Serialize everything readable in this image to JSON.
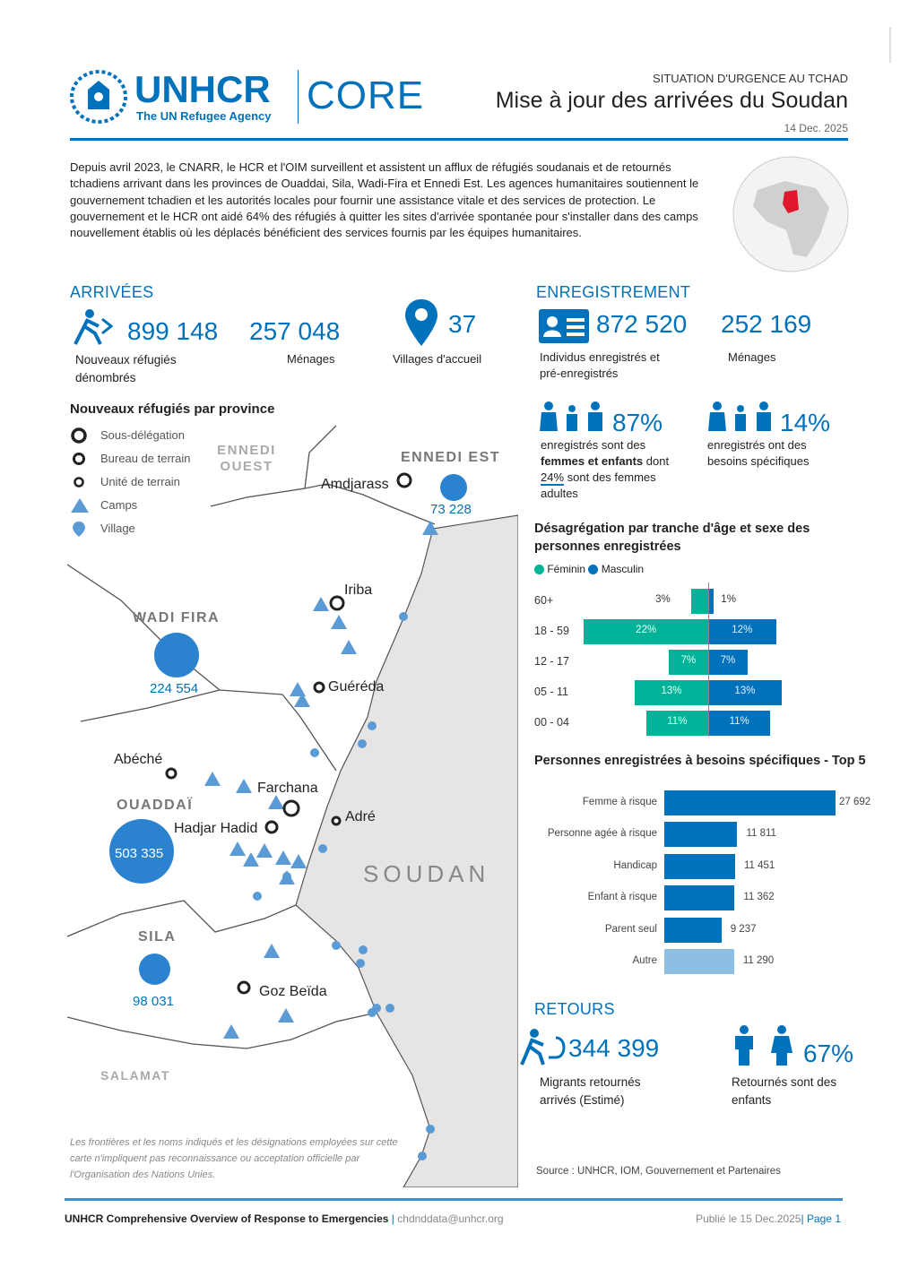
{
  "header": {
    "logo_text": "UNHCR",
    "logo_sub": "The UN Refugee Agency",
    "core": "CORE",
    "kicker": "SITUATION D'URGENCE AU TCHAD",
    "title": "Mise à jour des arrivées du Soudan",
    "date": "14 Dec. 2025"
  },
  "intro": "Depuis avril 2023, le CNARR, le HCR et l'OIM surveillent et assistent un afflux de réfugiés soudanais et de retournés tchadiens arrivant dans les provinces de Ouaddai, Sila, Wadi-Fira et Ennedi Est. Les agences humanitaires soutiennent le gouvernement tchadien et les autorités locales pour fournir une assistance vitale et des services de protection. Le gouvernement et le HCR ont aidé 64% des réfugiés à quitter les sites d'arrivée spontanée pour s'installer dans des camps nouvellement établis où les déplacés bénéficient des services fournis par les équipes humanitaires.",
  "arrivals": {
    "title": "ARRIVÉES",
    "refugees": "899 148",
    "refugees_label": "Nouveaux réfugiés dénombrés",
    "households": "257 048",
    "households_label": "Ménages",
    "villages": "37",
    "villages_label": "Villages d'accueil"
  },
  "registration": {
    "title": "ENREGISTREMENT",
    "individuals": "872 520",
    "individuals_label": "Individus enregistrés et pré-enregistrés",
    "households": "252 169",
    "households_label": "Ménages",
    "women_children_pct": "87%",
    "women_children_label_1": "enregistrés sont des",
    "women_children_label_2": "femmes et enfants",
    "women_children_label_3": "dont",
    "women_children_label_4": "24%",
    "women_children_label_5": "sont des femmes adultes",
    "specific_pct": "14%",
    "specific_label": "enregistrés ont des besoins spécifiques"
  },
  "map": {
    "title": "Nouveaux réfugiés par province",
    "legend": [
      "Sous-délégation",
      "Bureau de terrain",
      "Unité de terrain",
      "Camps",
      "Village"
    ],
    "regions": {
      "ennedi_ouest": "ENNEDI OUEST",
      "ennedi_est": "ENNEDI EST",
      "wadi_fira": "WADI FIRA",
      "ouaddai": "OUADDAÏ",
      "sila": "SILA",
      "salamat": "SALAMAT",
      "soudan": "SOUDAN"
    },
    "places": {
      "amdjarass": "Amdjarass",
      "iriba": "Iriba",
      "guereda": "Guéréda",
      "abeche": "Abéché",
      "farchana": "Farchana",
      "adre": "Adré",
      "hadjar": "Hadjar Hadid",
      "goz": "Goz Beïda"
    },
    "values": {
      "ennedi_est": "73 228",
      "wadi_fira": "224 554",
      "ouaddai": "503 335",
      "sila": "98 031"
    },
    "disclaimer": "Les frontières et les noms indiqués et les désignations employées sur cette carte n'impliquent pas reconnaissance ou acceptation officielle par l'Organisation des Nations Unies."
  },
  "chart_data": [
    {
      "type": "bar",
      "title": "Désagrégation par tranche d'âge et sexe des personnes enregistrées",
      "categories": [
        "60+",
        "18 - 59",
        "12 - 17",
        "05 - 11",
        "00 - 04"
      ],
      "series": [
        {
          "name": "Féminin",
          "values": [
            3,
            22,
            7,
            13,
            11
          ],
          "labels": [
            "3%",
            "22%",
            "7%",
            "13%",
            "11%"
          ],
          "color": "#00B398"
        },
        {
          "name": "Masculin",
          "values": [
            1,
            12,
            7,
            13,
            11
          ],
          "labels": [
            "1%",
            "12%",
            "7%",
            "13%",
            "11%"
          ],
          "color": "#0072BC"
        }
      ],
      "legend": "top-left"
    },
    {
      "type": "bar",
      "title": "Personnes enregistrées à besoins spécifiques - Top 5",
      "categories": [
        "Femme à risque",
        "Personne agée à risque",
        "Handicap",
        "Enfant à risque",
        "Parent seul",
        "Autre"
      ],
      "values": [
        27692,
        11811,
        11451,
        11362,
        9237,
        11290
      ],
      "labels": [
        "27 692",
        "11 811",
        "11 451",
        "11 362",
        "9 237",
        "11 290"
      ],
      "colors": [
        "#0072BC",
        "#0072BC",
        "#0072BC",
        "#0072BC",
        "#0072BC",
        "#8EBEE2"
      ]
    }
  ],
  "returns": {
    "title": "RETOURS",
    "migrants": "344 399",
    "migrants_label": "Migrants retournés arrivés (Estimé)",
    "children_pct": "67%",
    "children_label": "Retournés sont des enfants"
  },
  "source": "Source : UNHCR, IOM, Gouvernement et Partenaires",
  "footer": {
    "left": "UNHCR Comprehensive Overview of Response to Emergencies",
    "email": "chdnddata@unhcr.org",
    "published": "Publié le 15 Dec.2025",
    "page": "Page 1"
  },
  "colors": {
    "brand": "#0072BC",
    "female": "#00B398",
    "male": "#0072BC",
    "other": "#8EBEE2"
  }
}
